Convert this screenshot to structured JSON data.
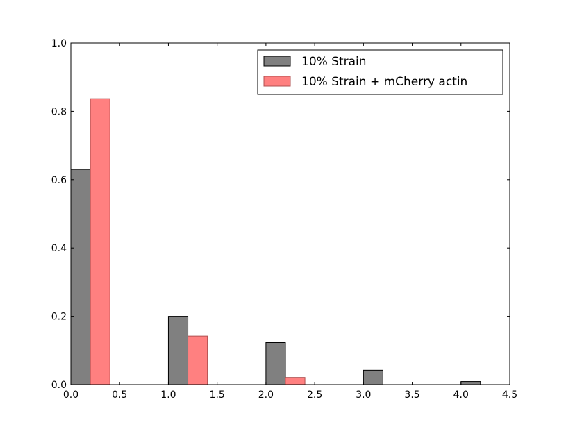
{
  "chart_data": {
    "type": "bar",
    "title": "",
    "xlabel": "",
    "ylabel": "",
    "xlim": [
      0.0,
      4.5
    ],
    "ylim": [
      0.0,
      1.0
    ],
    "xticks": [
      "0.0",
      "0.5",
      "1.0",
      "1.5",
      "2.0",
      "2.5",
      "3.0",
      "3.5",
      "4.0",
      "4.5"
    ],
    "yticks": [
      "0.0",
      "0.2",
      "0.4",
      "0.6",
      "0.8",
      "1.0"
    ],
    "grid": false,
    "legend_position": "top-right",
    "series": [
      {
        "name": "10% Strain",
        "color": "#808080",
        "bars": [
          {
            "x0": 0.0,
            "x1": 0.2,
            "value": 0.63
          },
          {
            "x0": 1.0,
            "x1": 1.2,
            "value": 0.2
          },
          {
            "x0": 2.0,
            "x1": 2.2,
            "value": 0.123
          },
          {
            "x0": 3.0,
            "x1": 3.2,
            "value": 0.042
          },
          {
            "x0": 4.0,
            "x1": 4.2,
            "value": 0.009
          }
        ]
      },
      {
        "name": "10% Strain + mCherry actin",
        "color": "#ff8080",
        "bars": [
          {
            "x0": 0.2,
            "x1": 0.4,
            "value": 0.837
          },
          {
            "x0": 1.2,
            "x1": 1.4,
            "value": 0.142
          },
          {
            "x0": 2.2,
            "x1": 2.4,
            "value": 0.021
          }
        ]
      }
    ]
  }
}
